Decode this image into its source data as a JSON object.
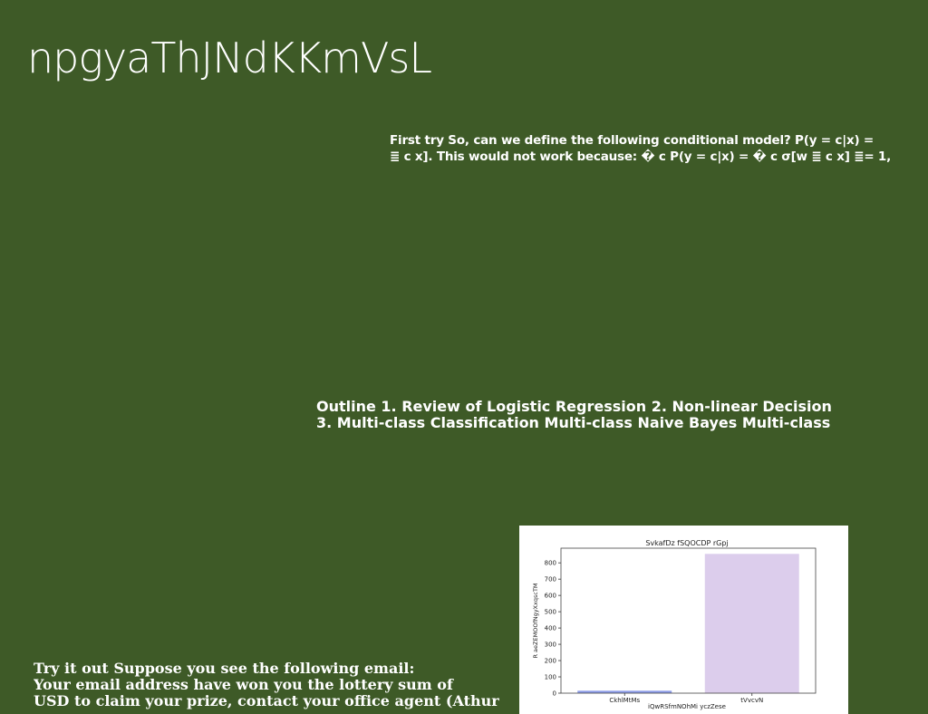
{
  "slide": {
    "title": "npgyaThJNdKKmVsL",
    "block_a": {
      "line1": "First try So, can we define the following conditional model? P(y = c|x) =",
      "line2": "≣ c x]. This would not work because: � c P(y = c|x) = � c σ[w ≣ c x] ≣= 1,"
    },
    "block_b": {
      "line1": "Outline 1. Review of Logistic Regression 2. Non-linear Decision",
      "line2": "3. Multi-class Classification Multi-class Naive Bayes Multi-class"
    },
    "block_c": {
      "line1": "Try it out Suppose you see the following email:",
      "line2": "Your email address have won you the lottery sum of",
      "line3": "USD to claim your prize, contact your office agent (Athur"
    }
  },
  "chart_data": {
    "type": "bar",
    "title": "SvkafDz fSQOCDP rGpj",
    "xlabel": "iQwRSfmNOhMi yczZese",
    "ylabel": "R aeZEMOOfNgyXxqscTM",
    "categories": [
      "CkhlMtMs",
      "tVvcvN"
    ],
    "values": [
      15,
      855
    ],
    "colors": [
      "#8f9ee8",
      "#dccdec"
    ],
    "ylim": [
      0,
      890
    ],
    "yticks": [
      0,
      100,
      200,
      300,
      400,
      500,
      600,
      700,
      800
    ],
    "grid": false
  }
}
